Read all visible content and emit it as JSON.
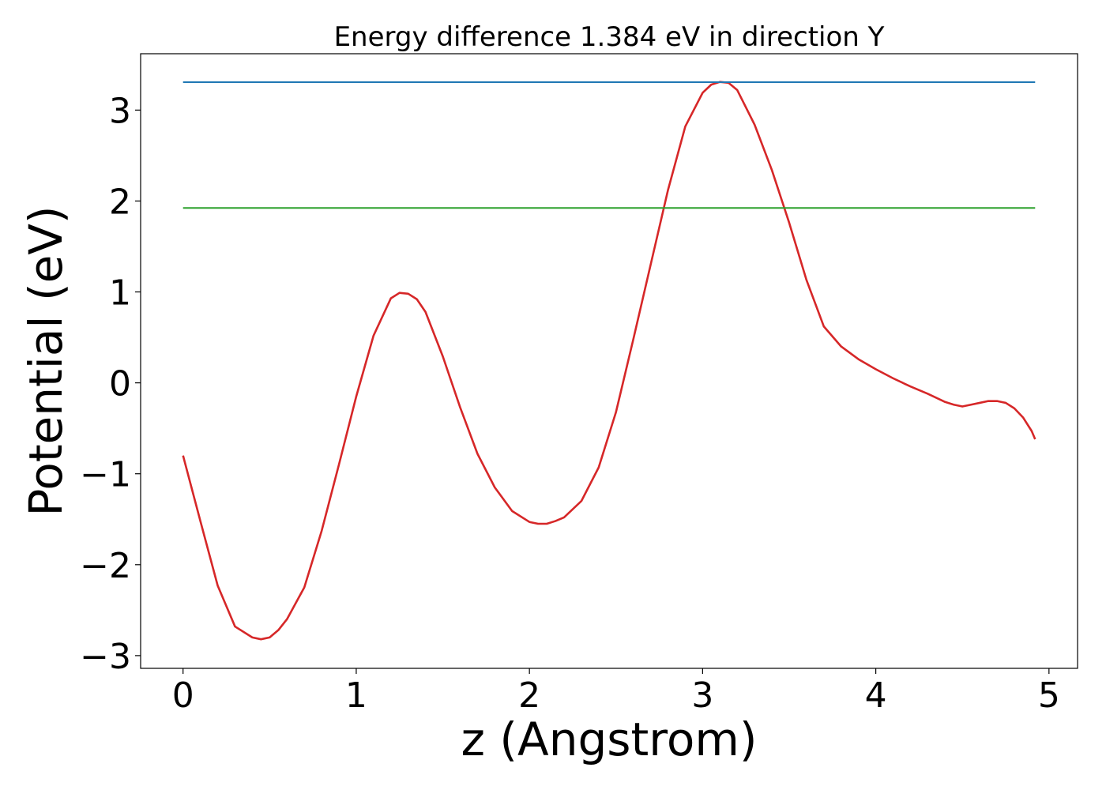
{
  "chart_data": {
    "type": "line",
    "title": "Energy difference 1.384 eV in direction Y",
    "xlabel": "z (Angstrom)",
    "ylabel": "Potential (eV)",
    "xlim": [
      -0.245,
      5.165
    ],
    "ylim": [
      -3.14,
      3.62
    ],
    "xticks": [
      0,
      1,
      2,
      3,
      4,
      5
    ],
    "xtick_labels": [
      "0",
      "1",
      "2",
      "3",
      "4",
      "5"
    ],
    "yticks": [
      -3,
      -2,
      -1,
      0,
      1,
      2,
      3
    ],
    "ytick_labels": [
      "−3",
      "−2",
      "−1",
      "0",
      "1",
      "2",
      "3"
    ],
    "grid": false,
    "series": [
      {
        "color": "#d62728",
        "style": "line",
        "x": [
          0,
          0.1,
          0.2,
          0.3,
          0.4,
          0.45,
          0.5,
          0.55,
          0.6,
          0.7,
          0.8,
          0.9,
          1.0,
          1.1,
          1.2,
          1.25,
          1.3,
          1.35,
          1.4,
          1.5,
          1.6,
          1.7,
          1.8,
          1.9,
          2.0,
          2.05,
          2.1,
          2.15,
          2.2,
          2.3,
          2.4,
          2.5,
          2.6,
          2.7,
          2.8,
          2.9,
          3.0,
          3.05,
          3.1,
          3.15,
          3.2,
          3.3,
          3.4,
          3.5,
          3.6,
          3.7,
          3.8,
          3.9,
          4.0,
          4.1,
          4.2,
          4.3,
          4.4,
          4.45,
          4.5,
          4.55,
          4.6,
          4.65,
          4.7,
          4.75,
          4.8,
          4.85,
          4.9,
          4.92
        ],
        "y": [
          -0.8,
          -1.52,
          -2.23,
          -2.68,
          -2.8,
          -2.82,
          -2.8,
          -2.72,
          -2.6,
          -2.25,
          -1.63,
          -0.9,
          -0.15,
          0.52,
          0.93,
          0.99,
          0.98,
          0.92,
          0.78,
          0.29,
          -0.27,
          -0.78,
          -1.15,
          -1.41,
          -1.53,
          -1.55,
          -1.55,
          -1.52,
          -1.48,
          -1.3,
          -0.93,
          -0.32,
          0.48,
          1.3,
          2.12,
          2.82,
          3.19,
          3.28,
          3.31,
          3.3,
          3.22,
          2.84,
          2.34,
          1.76,
          1.13,
          0.62,
          0.4,
          0.26,
          0.15,
          0.05,
          -0.04,
          -0.12,
          -0.21,
          -0.24,
          -0.26,
          -0.24,
          -0.22,
          -0.2,
          -0.2,
          -0.22,
          -0.28,
          -0.38,
          -0.53,
          -0.62
        ]
      },
      {
        "color": "#1f77b4",
        "style": "hline",
        "x": [
          0,
          4.92
        ],
        "y": [
          3.307,
          3.307
        ]
      },
      {
        "color": "#2ca02c",
        "style": "hline",
        "x": [
          0,
          4.92
        ],
        "y": [
          1.923,
          1.923
        ]
      }
    ]
  }
}
